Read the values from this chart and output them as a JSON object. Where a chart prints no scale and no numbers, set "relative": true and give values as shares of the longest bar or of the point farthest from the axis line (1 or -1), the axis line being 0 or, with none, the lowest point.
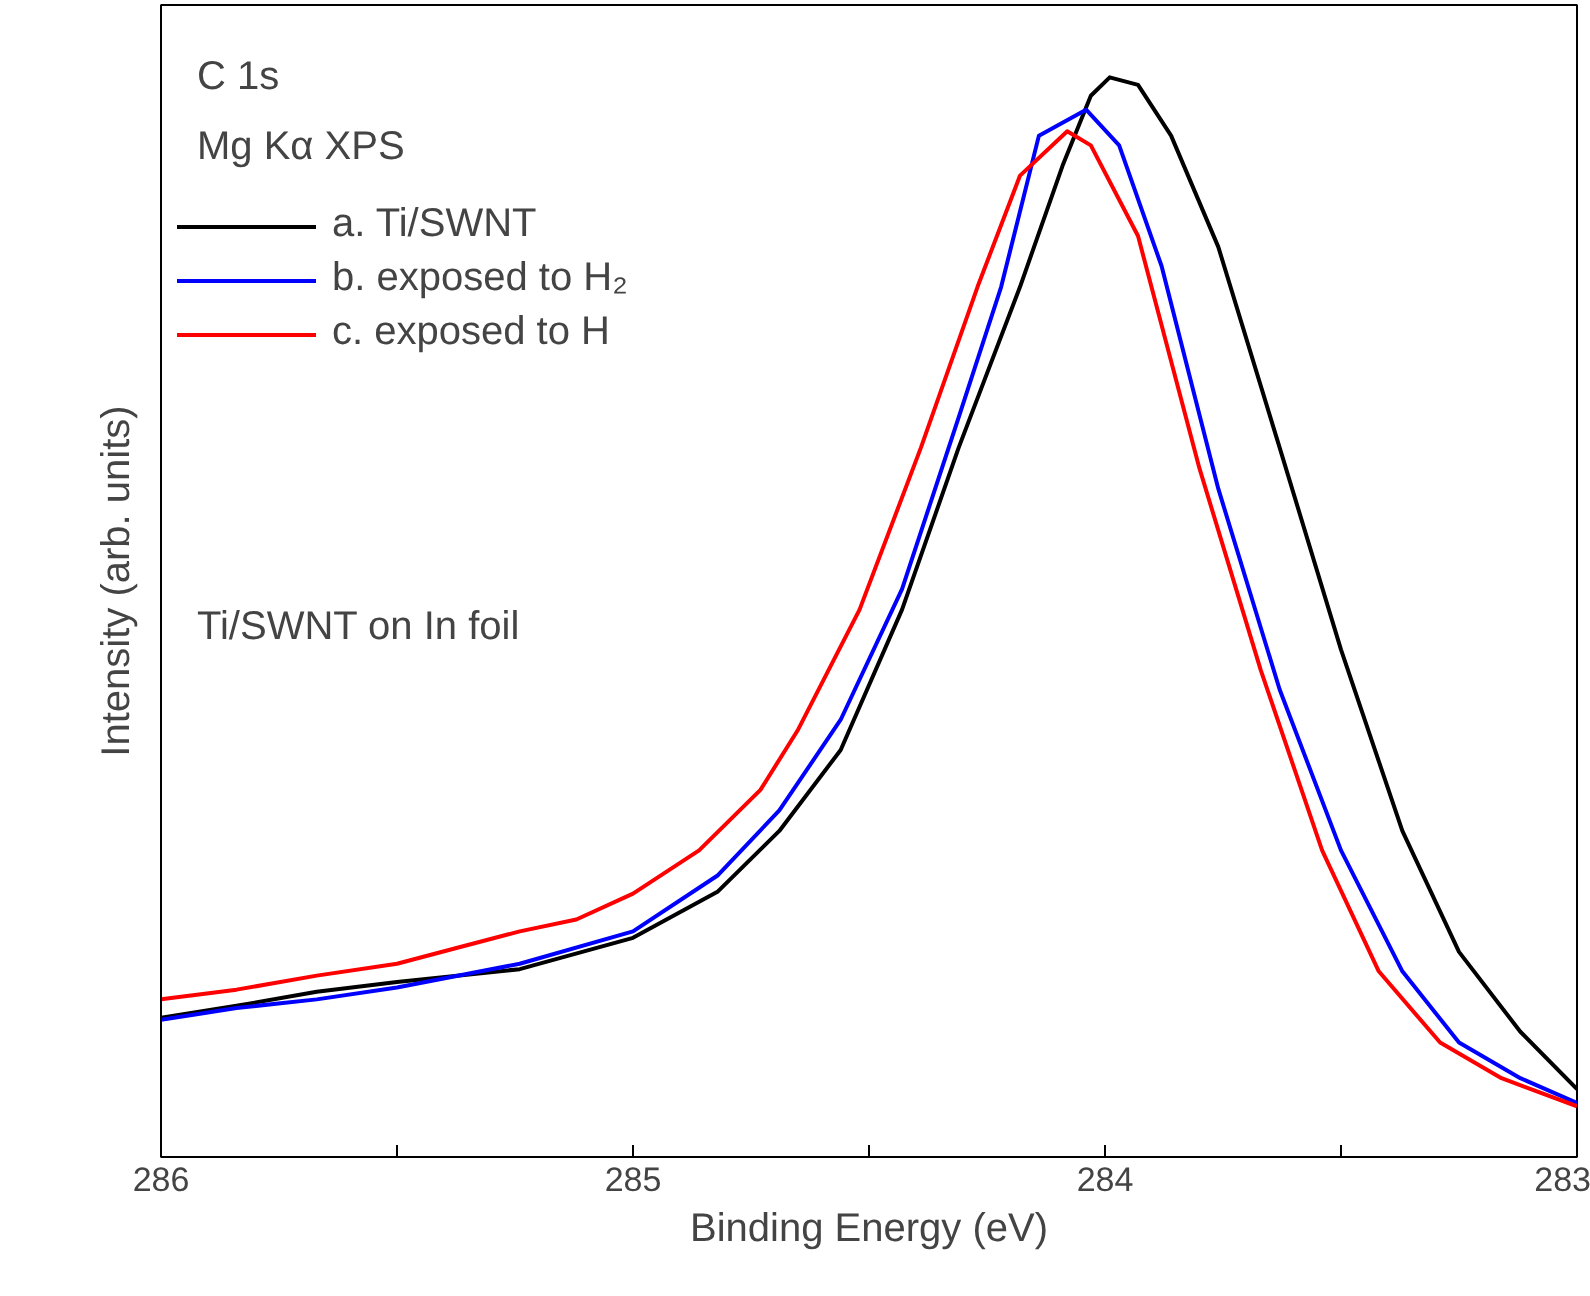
{
  "chart_data": {
    "type": "line",
    "relative": true,
    "xlabel": "Binding Energy (eV)",
    "ylabel": "Intensity (arb. units)",
    "xlim": [
      286,
      283
    ],
    "xticks": [
      286,
      {
        "value": 285.5,
        "label": null
      },
      285,
      {
        "value": 284.5,
        "label": null
      },
      284,
      {
        "value": 283.5,
        "label": null
      },
      283
    ],
    "annotations": [
      "C 1s",
      "Mg Kα XPS",
      "Ti/SWNT on In foil"
    ],
    "legend": "top left",
    "grid": false,
    "marker": "none",
    "line_style": "solid",
    "series": [
      {
        "name": "a. Ti/SWNT",
        "color": "#000000",
        "x": [
          286,
          285.84,
          285.67,
          285.5,
          285.24,
          285.0,
          284.82,
          284.69,
          284.56,
          284.43,
          284.31,
          284.18,
          284.09,
          284.03,
          283.99,
          283.93,
          283.86,
          283.76,
          283.63,
          283.5,
          283.37,
          283.25,
          283.12,
          283.0
        ],
        "values": [
          0.129,
          0.14,
          0.153,
          0.162,
          0.174,
          0.203,
          0.246,
          0.302,
          0.377,
          0.507,
          0.657,
          0.806,
          0.918,
          0.983,
          1.0,
          0.993,
          0.946,
          0.843,
          0.657,
          0.47,
          0.302,
          0.19,
          0.116,
          0.063
        ]
      },
      {
        "name": "b. exposed to H₂",
        "color": "#0000ff",
        "x": [
          286,
          285.84,
          285.67,
          285.5,
          285.24,
          285.0,
          284.82,
          284.69,
          284.56,
          284.43,
          284.31,
          284.22,
          284.14,
          284.04,
          283.97,
          283.88,
          283.76,
          283.63,
          283.5,
          283.37,
          283.25,
          283.12,
          283.0
        ],
        "values": [
          0.127,
          0.138,
          0.146,
          0.157,
          0.179,
          0.209,
          0.261,
          0.321,
          0.405,
          0.526,
          0.685,
          0.806,
          0.946,
          0.97,
          0.937,
          0.825,
          0.619,
          0.433,
          0.284,
          0.172,
          0.106,
          0.073,
          0.05
        ]
      },
      {
        "name": "c. exposed to H",
        "color": "#ff0000",
        "x": [
          286,
          285.84,
          285.67,
          285.5,
          285.37,
          285.24,
          285.12,
          285.0,
          284.86,
          284.73,
          284.65,
          284.52,
          284.39,
          284.27,
          284.18,
          284.08,
          284.03,
          283.93,
          283.8,
          283.67,
          283.54,
          283.42,
          283.29,
          283.16,
          283.0
        ],
        "values": [
          0.146,
          0.155,
          0.168,
          0.179,
          0.194,
          0.209,
          0.22,
          0.244,
          0.284,
          0.34,
          0.396,
          0.507,
          0.657,
          0.806,
          0.909,
          0.95,
          0.937,
          0.853,
          0.638,
          0.451,
          0.284,
          0.172,
          0.106,
          0.073,
          0.047
        ]
      }
    ]
  }
}
